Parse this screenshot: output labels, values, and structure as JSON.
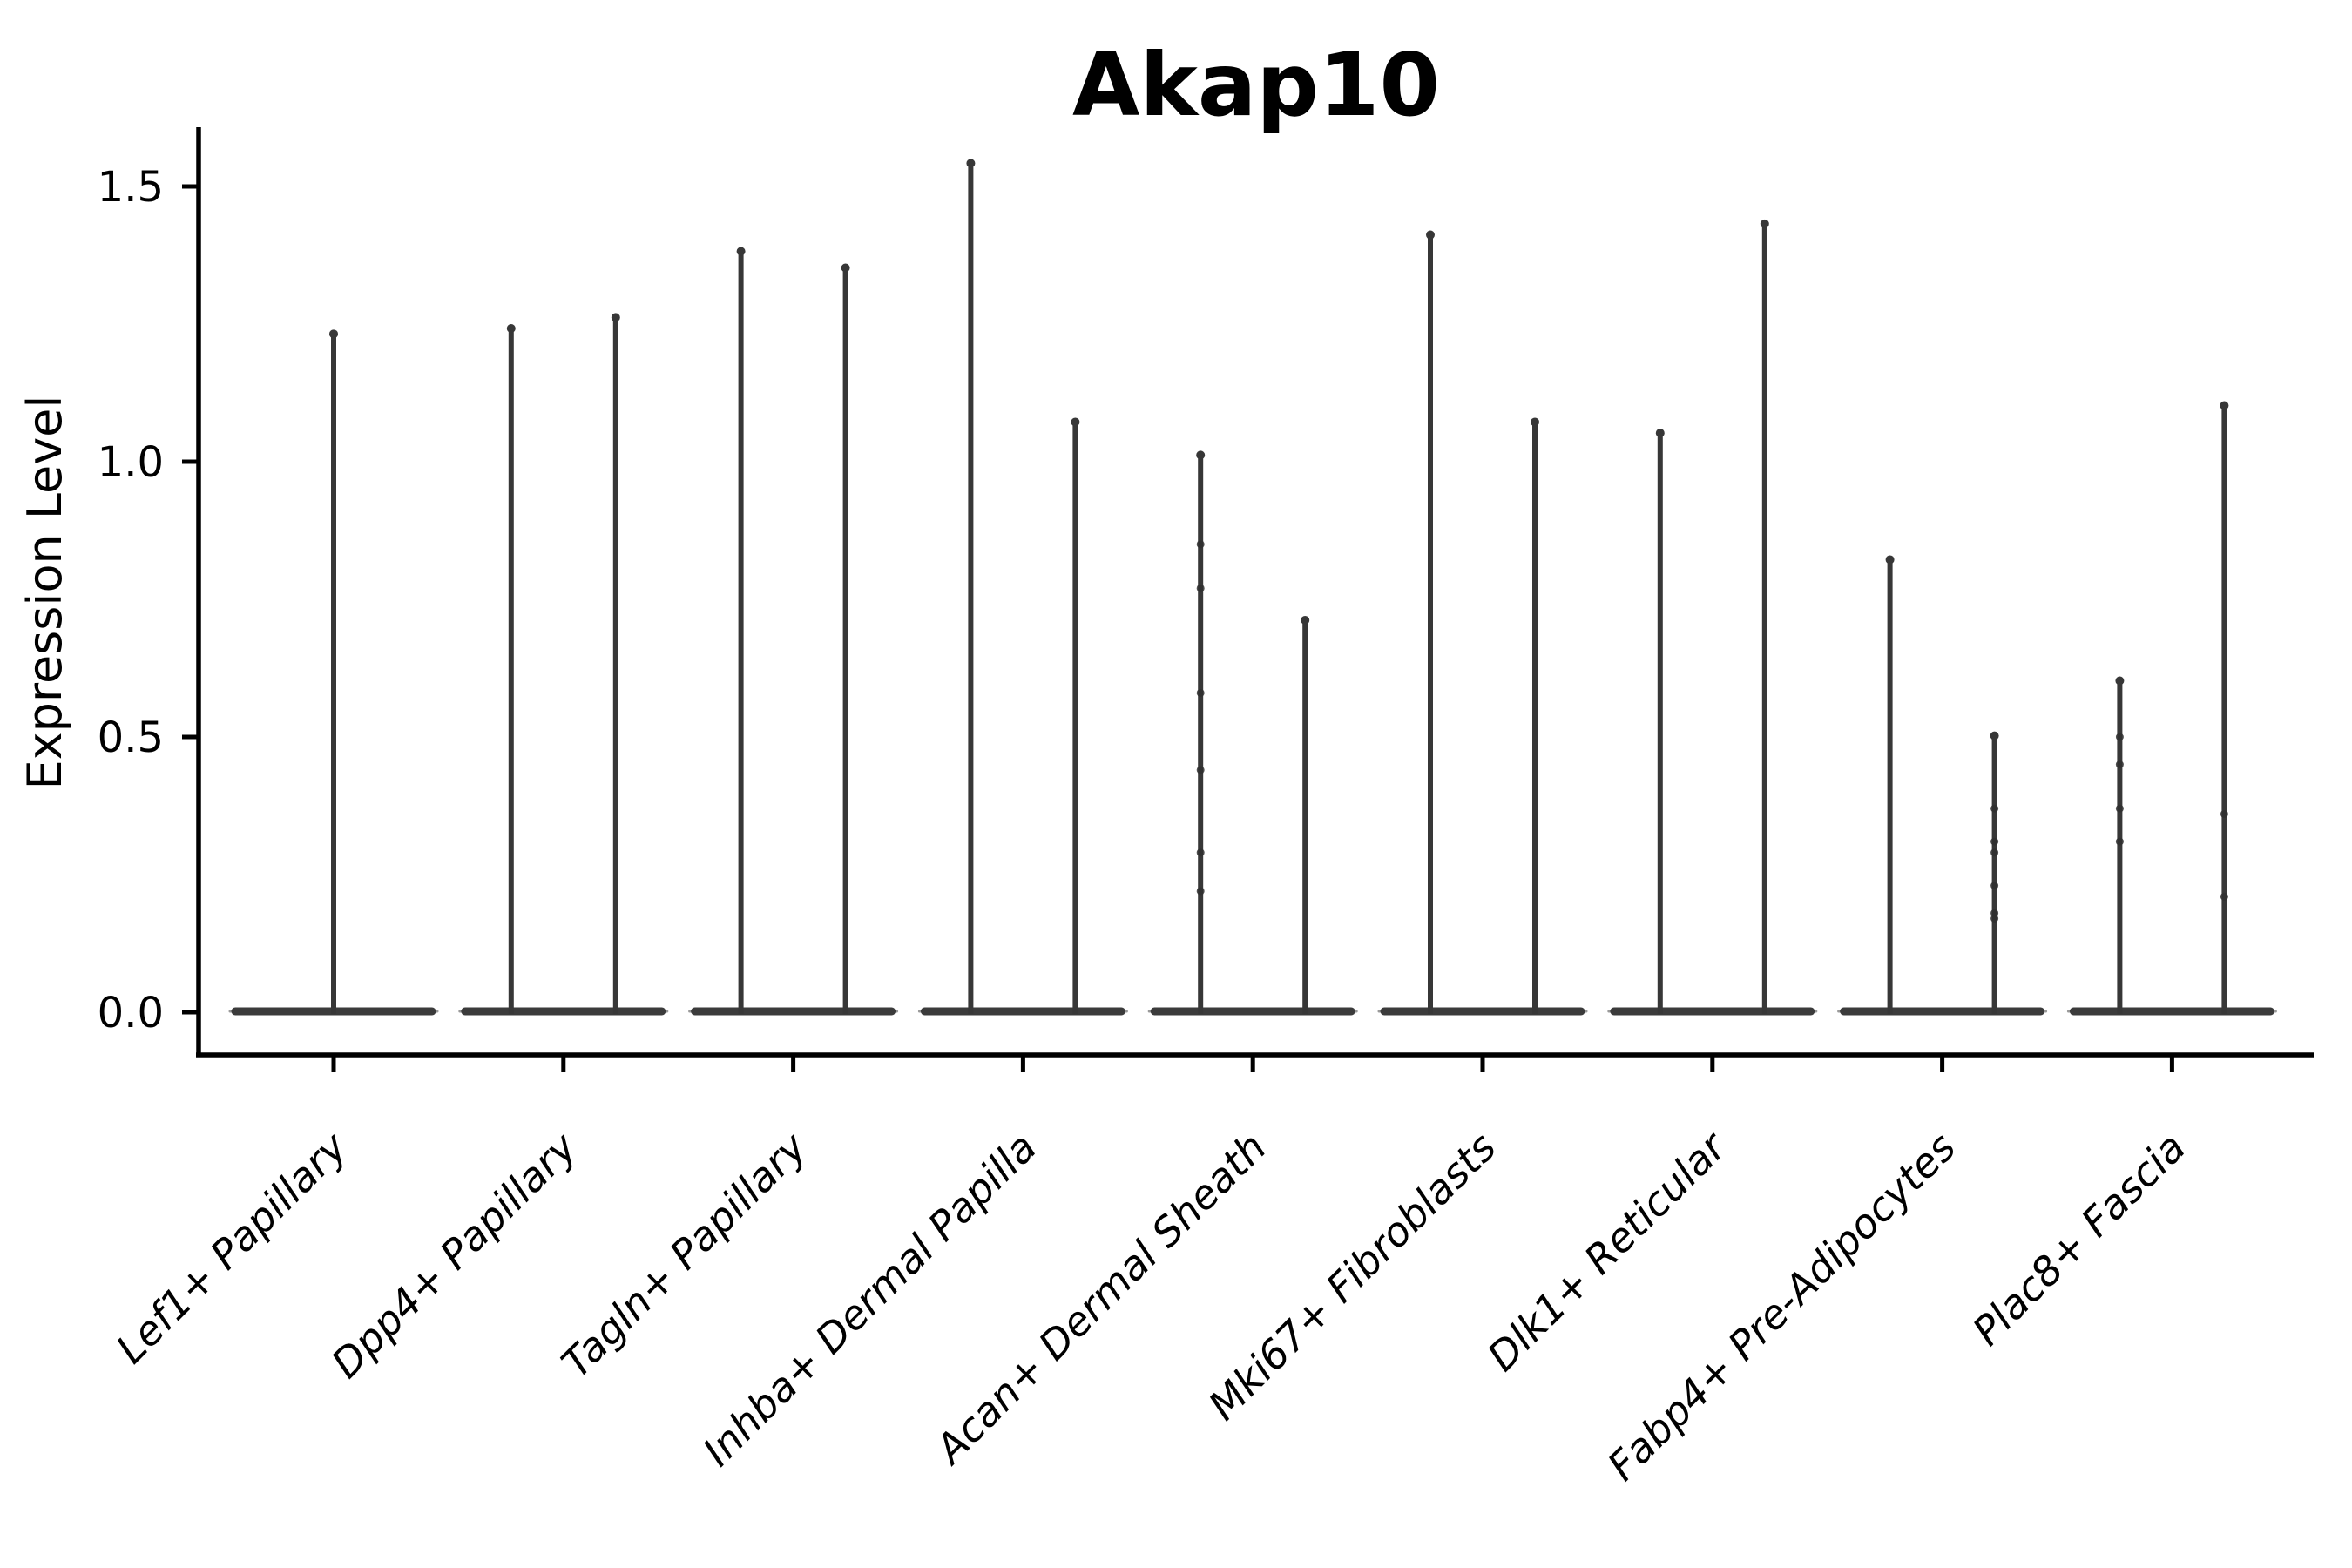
{
  "figure": {
    "title": "Akap10",
    "ylabel": "Expression Level"
  },
  "chart_data": {
    "type": "violin",
    "title": "Akap10",
    "xlabel": "",
    "ylabel": "Expression Level",
    "grid": false,
    "legend": "none",
    "ylim": [
      -0.08,
      1.62
    ],
    "ytick_labels": [
      "0.0",
      "0.5",
      "1.0",
      "1.5"
    ],
    "ytick_values": [
      0.0,
      0.5,
      1.0,
      1.5
    ],
    "x_labels_rotation_deg": 45,
    "x_labels_italic": true,
    "categories": [
      "Lef1+ Papillary",
      "Dpp4+ Papillary",
      "Tagln+ Papillary",
      "Inhba+ Dermal Papilla",
      "Acan+ Dermal Sheath",
      "Mki67+ Fibroblasts",
      "Dlk1+ Reticular",
      "Fabp4+ Pre-Adipocytes",
      "Plac8+ Fascia"
    ],
    "series": [
      {
        "category": "Lef1+ Papillary",
        "violins": [
          {
            "group": "center",
            "max": 1.24,
            "points": []
          }
        ]
      },
      {
        "category": "Dpp4+ Papillary",
        "violins": [
          {
            "group": "left",
            "max": 1.25,
            "points": []
          },
          {
            "group": "right",
            "max": 1.27,
            "points": []
          }
        ]
      },
      {
        "category": "Tagln+ Papillary",
        "violins": [
          {
            "group": "left",
            "max": 1.39,
            "points": []
          },
          {
            "group": "right",
            "max": 1.36,
            "points": []
          }
        ]
      },
      {
        "category": "Inhba+ Dermal Papilla",
        "violins": [
          {
            "group": "left",
            "max": 1.55,
            "points": []
          },
          {
            "group": "right",
            "max": 1.08,
            "points": []
          }
        ]
      },
      {
        "category": "Acan+ Dermal Sheath",
        "violins": [
          {
            "group": "left",
            "max": 1.02,
            "points": [
              0.85,
              0.77,
              0.58,
              0.44,
              0.29,
              0.22
            ]
          },
          {
            "group": "right",
            "max": 0.72,
            "points": []
          }
        ]
      },
      {
        "category": "Mki67+ Fibroblasts",
        "violins": [
          {
            "group": "left",
            "max": 1.42,
            "points": []
          },
          {
            "group": "right",
            "max": 1.08,
            "points": []
          }
        ]
      },
      {
        "category": "Dlk1+ Reticular",
        "violins": [
          {
            "group": "left",
            "max": 1.06,
            "points": []
          },
          {
            "group": "right",
            "max": 1.44,
            "points": []
          }
        ]
      },
      {
        "category": "Fabp4+ Pre-Adipocytes",
        "violins": [
          {
            "group": "left",
            "max": 0.83,
            "points": []
          },
          {
            "group": "right",
            "max": 0.51,
            "points": [
              0.37,
              0.31,
              0.29,
              0.23,
              0.18,
              0.17
            ]
          }
        ]
      },
      {
        "category": "Plac8+ Fascia",
        "violins": [
          {
            "group": "left",
            "max": 0.61,
            "points": [
              0.5,
              0.45,
              0.37,
              0.31
            ]
          },
          {
            "group": "right",
            "max": 1.11,
            "points": [
              0.36,
              0.21
            ]
          }
        ]
      }
    ],
    "style": {
      "violin_line_color": "#3b3b3b",
      "axis_color": "#000000",
      "background": "#ffffff"
    }
  }
}
